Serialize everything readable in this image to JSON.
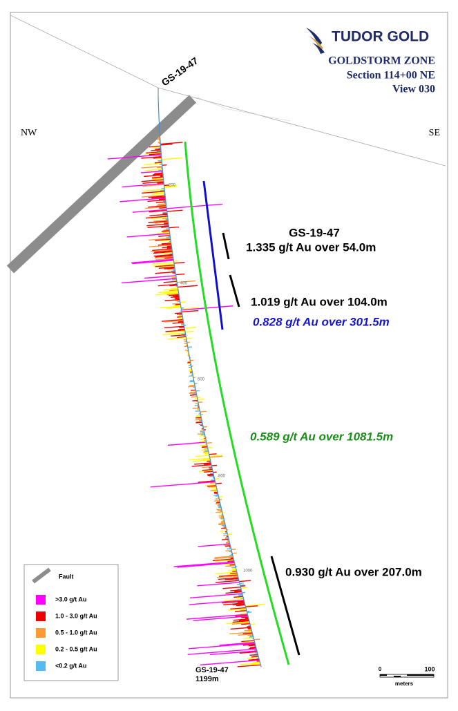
{
  "header": {
    "company": "TUDOR GOLD",
    "zone": "GOLDSTORM ZONE",
    "section": "Section 114+00 NE",
    "view": "View 030"
  },
  "directions": {
    "left": "NW",
    "right": "SE"
  },
  "hole": {
    "collar_label": "GS-19-47",
    "end_label": "GS-19-47",
    "end_depth": "1199m",
    "depth_labels": [
      "200",
      "400",
      "600",
      "800",
      "1000"
    ]
  },
  "intercepts": {
    "hole_title": "GS-19-47",
    "items": [
      "1.335 g/t Au over 54.0m",
      "1.019 g/t Au over 104.0m",
      "0.828 g/t Au over 301.5m",
      "0.589 g/t Au over 1081.5m",
      "0.930 g/t Au over 207.0m"
    ]
  },
  "legend": {
    "fault": "Fault",
    "grades": [
      ">3.0 g/t Au",
      "1.0 - 3.0 g/t Au",
      "0.5 - 1.0 g/t Au",
      "0.2 - 0.5 g/t Au",
      "<0.2 g/t Au"
    ]
  },
  "scale": {
    "start": "0",
    "end": "100",
    "unit": "meters"
  }
}
